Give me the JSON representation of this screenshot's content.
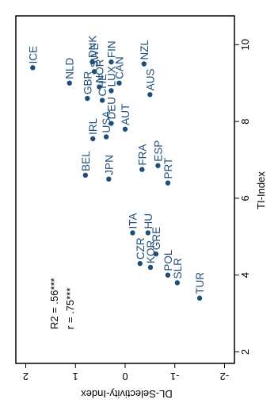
{
  "chart_data": {
    "type": "scatter",
    "orientation": "rotated-180",
    "xlabel": "TI-Index",
    "ylabel": "DL-Selectivity-Index",
    "xlim": [
      1.7,
      10.75
    ],
    "ylim": [
      -2.2,
      2.2
    ],
    "xticks": [
      2,
      4,
      6,
      8,
      10
    ],
    "yticks": [
      -2,
      -1,
      0,
      1,
      2
    ],
    "grid": false,
    "marker_color": "#1f4e79",
    "annotations": [
      "R2 = .56***",
      "r  =  .75***"
    ],
    "points": [
      {
        "label": "ICE",
        "x": 9.4,
        "y": 1.86
      },
      {
        "label": "NLD",
        "x": 9.0,
        "y": 1.12
      },
      {
        "label": "DNK",
        "x": 9.55,
        "y": 0.66
      },
      {
        "label": "SWE",
        "x": 9.3,
        "y": 0.62
      },
      {
        "label": "FIN",
        "x": 9.55,
        "y": 0.28
      },
      {
        "label": "NOR",
        "x": 8.9,
        "y": 0.52
      },
      {
        "label": "GBR",
        "x": 8.6,
        "y": 0.76
      },
      {
        "label": "LUX",
        "x": 8.8,
        "y": 0.28
      },
      {
        "label": "CHE",
        "x": 8.55,
        "y": 0.46
      },
      {
        "label": "CAN",
        "x": 9.0,
        "y": 0.12
      },
      {
        "label": "NZL",
        "x": 9.5,
        "y": -0.38
      },
      {
        "label": "IRL",
        "x": 7.55,
        "y": 0.65
      },
      {
        "label": "DEU",
        "x": 7.95,
        "y": 0.28
      },
      {
        "label": "USA",
        "x": 7.6,
        "y": 0.38
      },
      {
        "label": "AUS",
        "x": 8.7,
        "y": -0.5
      },
      {
        "label": "AUT",
        "x": 7.8,
        "y": 0.0
      },
      {
        "label": "BEL",
        "x": 6.6,
        "y": 0.8
      },
      {
        "label": "JPN",
        "x": 6.5,
        "y": 0.33
      },
      {
        "label": "FRA",
        "x": 6.75,
        "y": -0.34
      },
      {
        "label": "ESP",
        "x": 6.85,
        "y": -0.66
      },
      {
        "label": "PRT",
        "x": 6.4,
        "y": -0.86
      },
      {
        "label": "ITA",
        "x": 5.1,
        "y": -0.15
      },
      {
        "label": "HU",
        "x": 5.1,
        "y": -0.46
      },
      {
        "label": "CZR",
        "x": 4.3,
        "y": -0.3
      },
      {
        "label": "GRE",
        "x": 4.55,
        "y": -0.62
      },
      {
        "label": "KOR",
        "x": 4.2,
        "y": -0.51
      },
      {
        "label": "POL",
        "x": 4.0,
        "y": -0.86
      },
      {
        "label": "SLR",
        "x": 3.8,
        "y": -1.05
      },
      {
        "label": "TUR",
        "x": 3.4,
        "y": -1.5
      }
    ]
  }
}
